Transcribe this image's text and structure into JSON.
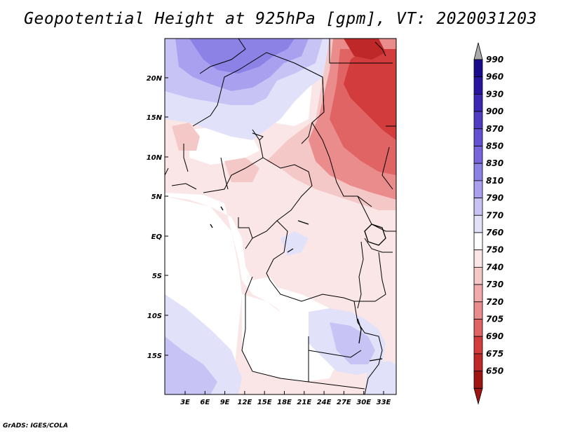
{
  "title": "Geopotential Height at 925hPa [gpm], VT: 2020031203",
  "credit": "GrADS: IGES/COLA",
  "axes": {
    "lat_labels": [
      "20N",
      "15N",
      "10N",
      "5N",
      "EQ",
      "5S",
      "10S",
      "15S"
    ],
    "lon_labels": [
      "3E",
      "6E",
      "9E",
      "12E",
      "15E",
      "18E",
      "21E",
      "24E",
      "27E",
      "30E",
      "33E"
    ]
  },
  "colorbar": {
    "levels": [
      "990",
      "960",
      "930",
      "900",
      "870",
      "850",
      "830",
      "810",
      "790",
      "770",
      "760",
      "750",
      "740",
      "730",
      "720",
      "705",
      "690",
      "675",
      "650"
    ],
    "colors": [
      "#1a0a8c",
      "#2814a0",
      "#3c28b4",
      "#503cc3",
      "#6450d2",
      "#7864dc",
      "#8c82e6",
      "#aaa0f0",
      "#c8c3f5",
      "#e1e1fa",
      "#ffffff",
      "#fae6e6",
      "#f5c8c8",
      "#f0aaaa",
      "#eb8c8c",
      "#e16464",
      "#d23c3c",
      "#be2828",
      "#a01414"
    ],
    "top_arrow_color": "#aaaaaa",
    "bottom_arrow_color": "#a01414"
  },
  "map": {
    "region": "Central Africa",
    "field": "925hPa geopotential height",
    "palette": {
      "very_low": "#c83232",
      "low": "#e15a5a",
      "mid_low": "#eb8c8c",
      "slightly_low": "#f5c8c8",
      "neutral_low": "#fae6e6",
      "neutral": "#ffffff",
      "slightly_high": "#e1e1fa",
      "high": "#c8c3f5",
      "higher": "#aaa0f0",
      "highest": "#8c82e6"
    }
  }
}
